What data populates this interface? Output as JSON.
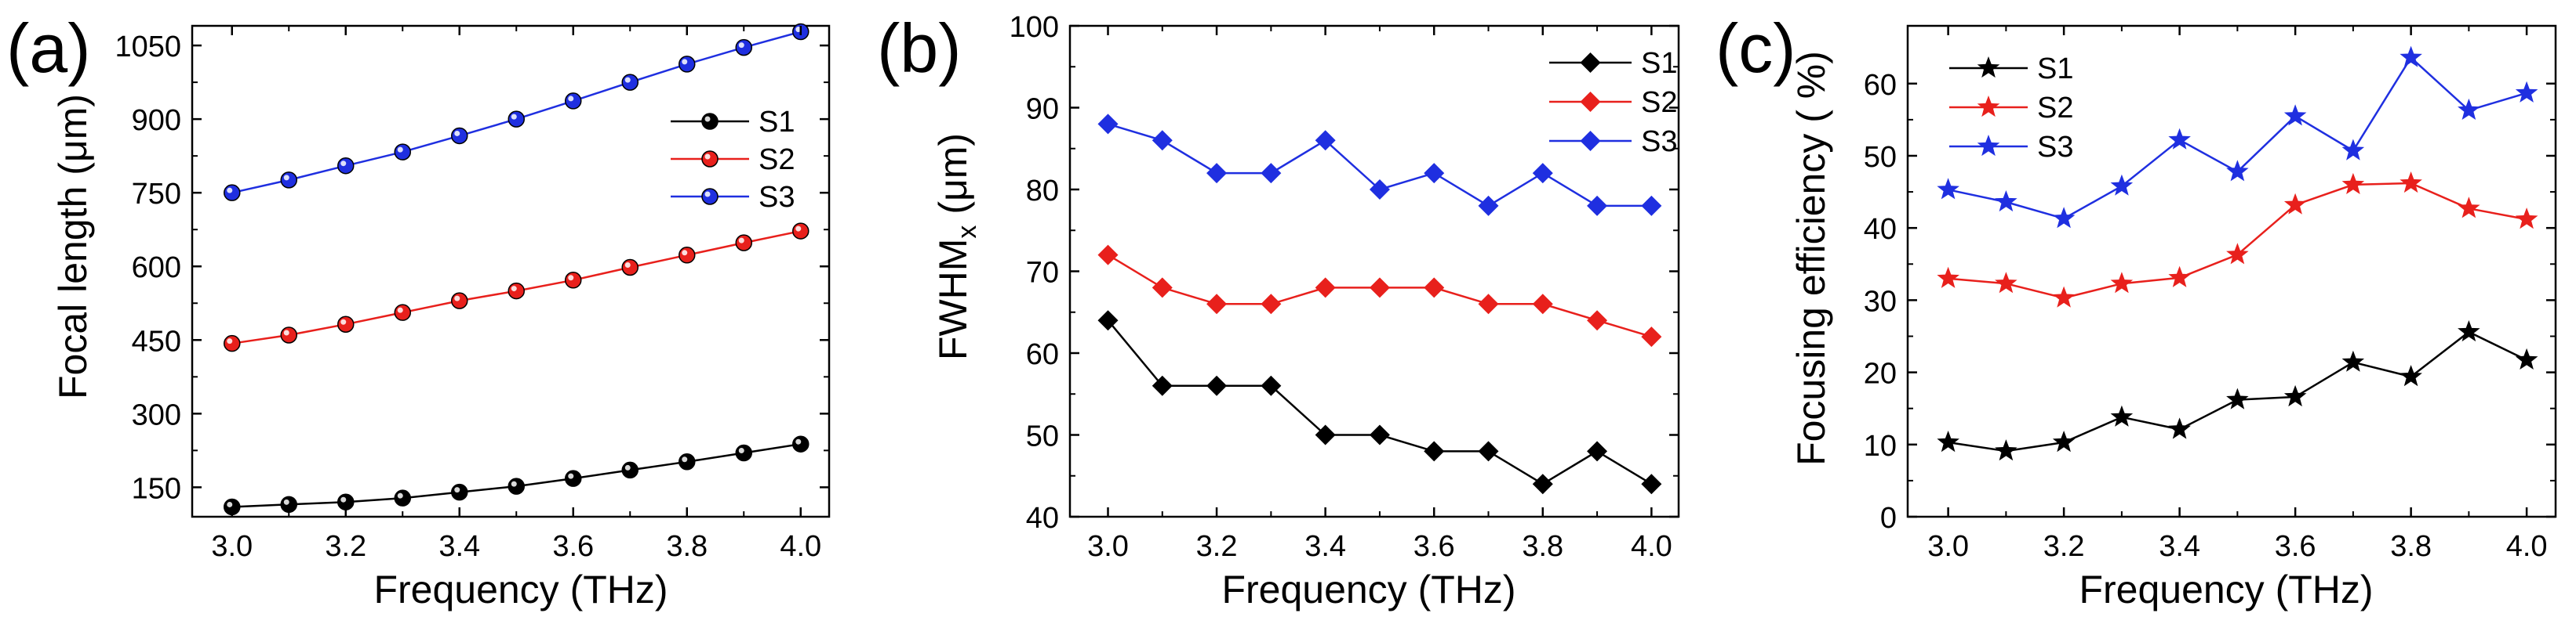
{
  "chart_data": [
    {
      "panel": "(a)",
      "type": "line",
      "xlabel": "Frequency (THz)",
      "ylabel": "Focal length (μm)",
      "xlim": [
        2.93,
        4.05
      ],
      "ylim": [
        90,
        1090
      ],
      "xticks": [
        3.0,
        3.2,
        3.4,
        3.6,
        3.8,
        4.0
      ],
      "xtick_labels": [
        "3.0",
        "3.2",
        "3.4",
        "3.6",
        "3.8",
        "4.0"
      ],
      "yticks": [
        150,
        300,
        450,
        600,
        750,
        900,
        1050
      ],
      "ytick_labels": [
        "150",
        "300",
        "450",
        "600",
        "750",
        "900",
        "1050"
      ],
      "marker": "circle",
      "legend_position": "center-right",
      "x": [
        3.0,
        3.1,
        3.2,
        3.3,
        3.4,
        3.5,
        3.6,
        3.7,
        3.8,
        3.9,
        4.0
      ],
      "series": [
        {
          "name": "S1",
          "color": "#000000",
          "values": [
            110,
            115,
            120,
            128,
            140,
            152,
            168,
            185,
            202,
            220,
            238
          ]
        },
        {
          "name": "S2",
          "color": "#e8201c",
          "values": [
            443,
            460,
            482,
            506,
            530,
            550,
            572,
            598,
            623,
            648,
            672
          ]
        },
        {
          "name": "S3",
          "color": "#1f2fe0",
          "values": [
            750,
            776,
            805,
            833,
            866,
            900,
            937,
            975,
            1012,
            1046,
            1078
          ]
        }
      ]
    },
    {
      "panel": "(b)",
      "type": "line",
      "xlabel": "Frequency (THz)",
      "ylabel": "FWHM",
      "ylabel_sub": "x",
      "ylabel_unit": " (μm)",
      "xlim": [
        2.93,
        4.05
      ],
      "ylim": [
        40,
        100
      ],
      "xticks": [
        3.0,
        3.2,
        3.4,
        3.6,
        3.8,
        4.0
      ],
      "xtick_labels": [
        "3.0",
        "3.2",
        "3.4",
        "3.6",
        "3.8",
        "4.0"
      ],
      "yticks": [
        40,
        50,
        60,
        70,
        80,
        90,
        100
      ],
      "ytick_labels": [
        "40",
        "50",
        "60",
        "70",
        "80",
        "90",
        "100"
      ],
      "marker": "diamond",
      "legend_position": "top-right",
      "x": [
        3.0,
        3.1,
        3.2,
        3.3,
        3.4,
        3.5,
        3.6,
        3.7,
        3.8,
        3.9,
        4.0
      ],
      "series": [
        {
          "name": "S1",
          "color": "#000000",
          "values": [
            64,
            56,
            56,
            56,
            50,
            50,
            48,
            48,
            44,
            48,
            44
          ]
        },
        {
          "name": "S2",
          "color": "#e8201c",
          "values": [
            72,
            68,
            66,
            66,
            68,
            68,
            68,
            66,
            66,
            64,
            62
          ]
        },
        {
          "name": "S3",
          "color": "#1f2fe0",
          "values": [
            88,
            86,
            82,
            82,
            86,
            80,
            82,
            78,
            82,
            78,
            78
          ]
        }
      ]
    },
    {
      "panel": "(c)",
      "type": "line",
      "xlabel": "Frequency (THz)",
      "ylabel": "Focusing  efficiency ( %)",
      "xlim": [
        2.93,
        4.05
      ],
      "ylim": [
        0,
        68
      ],
      "xticks": [
        3.0,
        3.2,
        3.4,
        3.6,
        3.8,
        4.0
      ],
      "xtick_labels": [
        "3.0",
        "3.2",
        "3.4",
        "3.6",
        "3.8",
        "4.0"
      ],
      "yticks": [
        0,
        10,
        20,
        30,
        40,
        50,
        60
      ],
      "ytick_labels": [
        "0",
        "10",
        "20",
        "30",
        "40",
        "50",
        "60"
      ],
      "marker": "star",
      "legend_position": "top-left",
      "x": [
        3.0,
        3.1,
        3.2,
        3.3,
        3.4,
        3.5,
        3.6,
        3.7,
        3.8,
        3.9,
        4.0
      ],
      "series": [
        {
          "name": "S1",
          "color": "#000000",
          "values": [
            10.3,
            9.1,
            10.3,
            13.8,
            12.1,
            16.2,
            16.6,
            21.4,
            19.4,
            25.6,
            21.7
          ]
        },
        {
          "name": "S2",
          "color": "#e8201c",
          "values": [
            33.0,
            32.3,
            30.3,
            32.3,
            33.1,
            36.3,
            43.2,
            46.0,
            46.2,
            42.7,
            41.2
          ]
        },
        {
          "name": "S3",
          "color": "#1f2fe0",
          "values": [
            45.3,
            43.6,
            41.3,
            45.8,
            52.2,
            47.8,
            55.5,
            50.7,
            63.6,
            56.3,
            58.7
          ]
        }
      ]
    }
  ]
}
